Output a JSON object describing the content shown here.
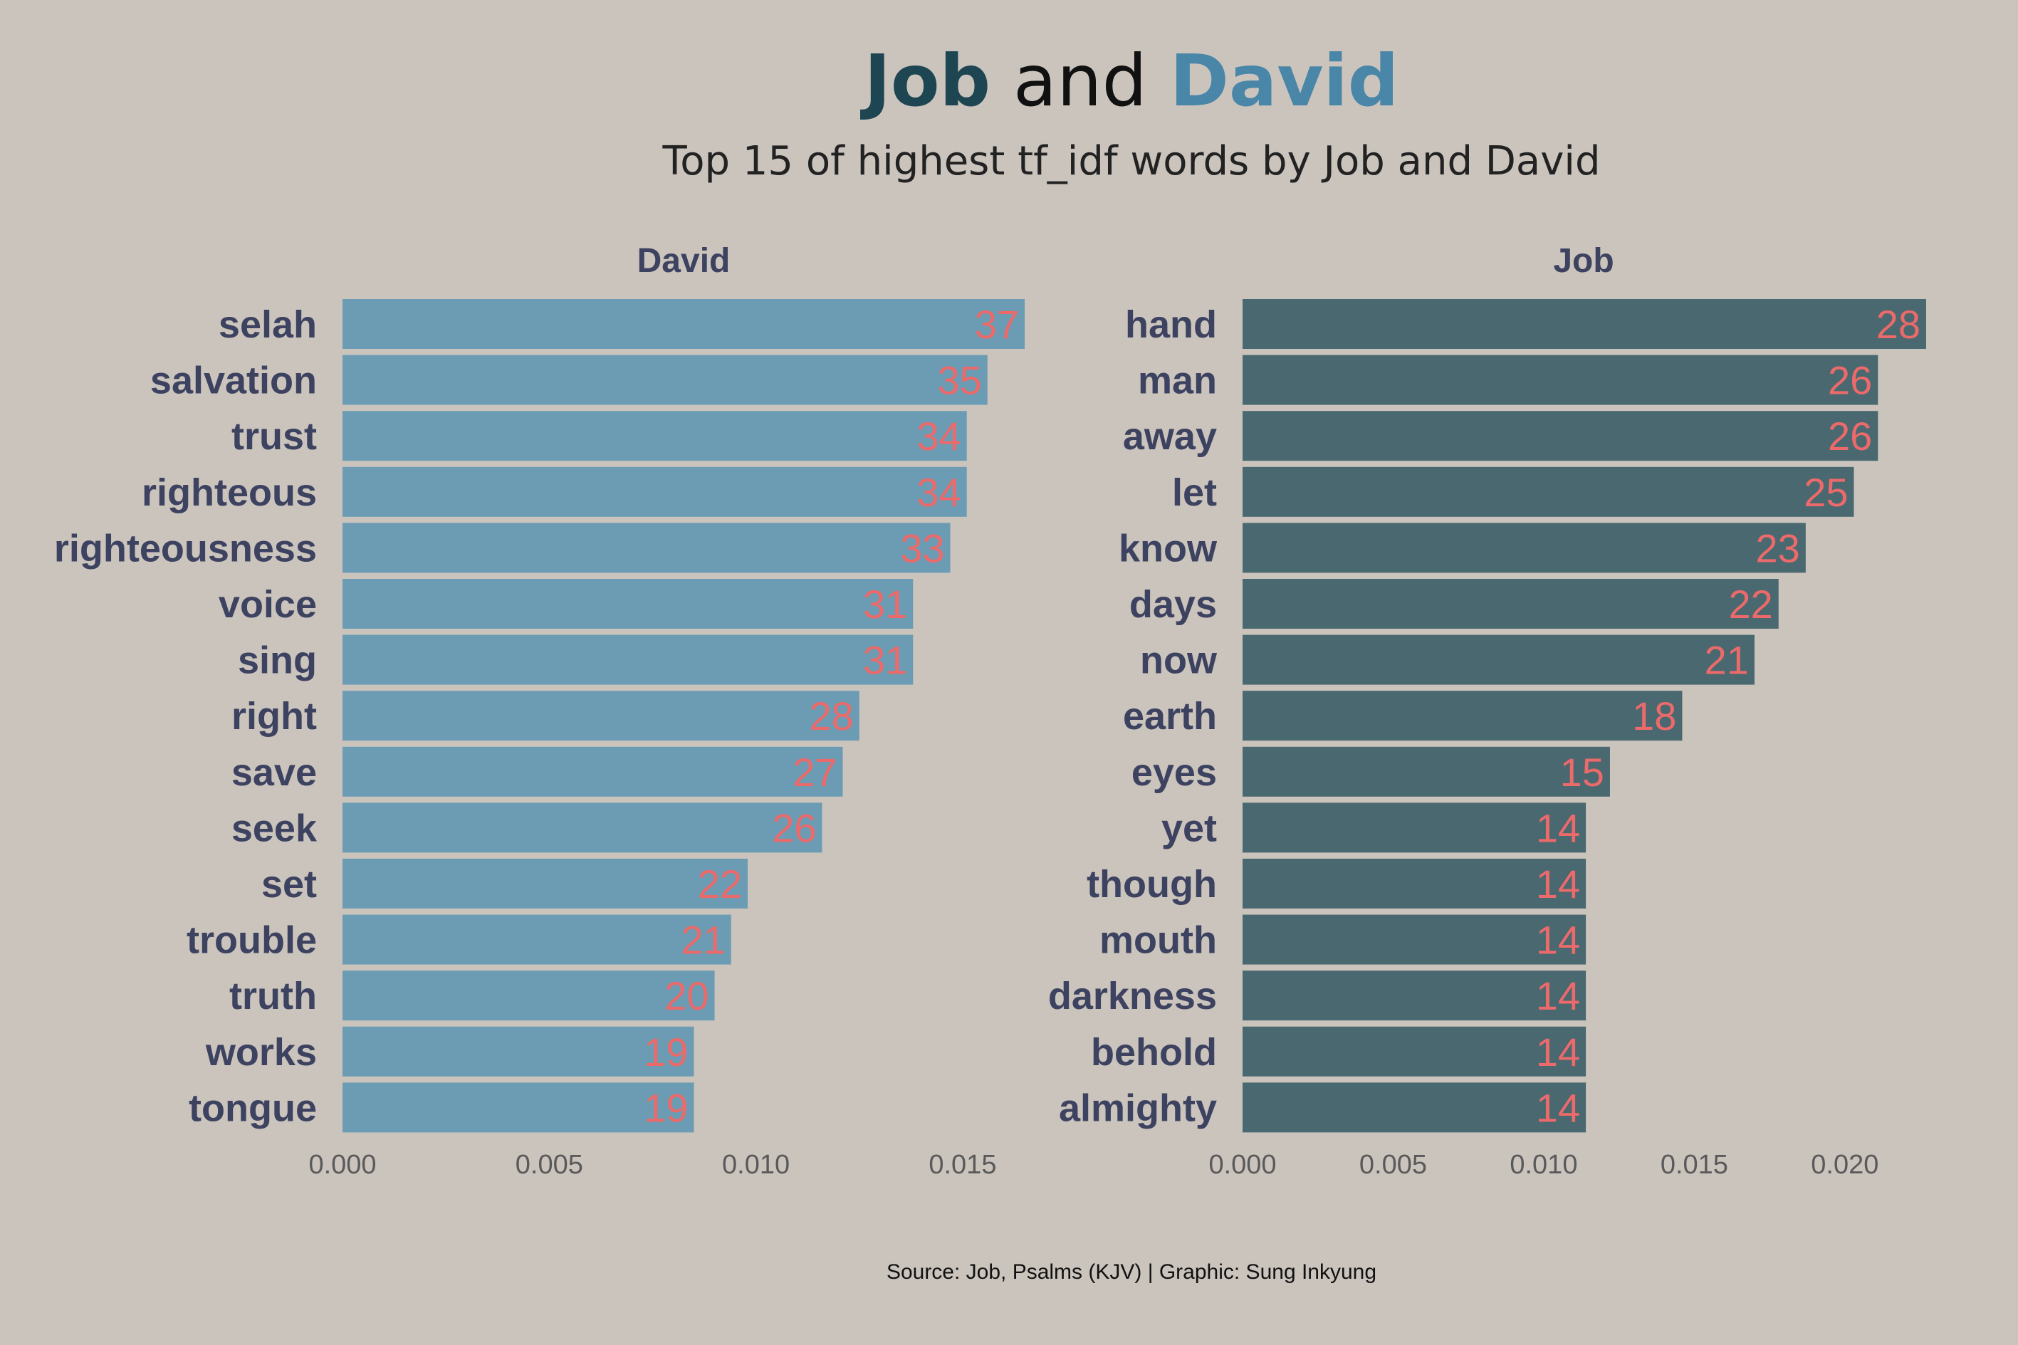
{
  "title": {
    "part1": "Job",
    "part2": " and ",
    "part3": "David"
  },
  "subtitle": "Top 15 of highest tf_idf words by Job and David",
  "caption": "Source: Job, Psalms (KJV) | Graphic: Sung Inkyung",
  "colors": {
    "background": "#cbc4bd",
    "job_title": "#1e4552",
    "david_title": "#4a86a8",
    "david_bar": "#6c9cb4",
    "job_bar": "#4a6870",
    "value_text": "#ec6a6a",
    "label_text": "#3c4260",
    "tick_text": "#5a5a5a"
  },
  "chart_data": [
    {
      "type": "bar",
      "orientation": "horizontal",
      "panel": "David",
      "categories": [
        "selah",
        "salvation",
        "trust",
        "righteous",
        "righteousness",
        "voice",
        "sing",
        "right",
        "save",
        "seek",
        "set",
        "trouble",
        "truth",
        "works",
        "tongue"
      ],
      "values": [
        0.0165,
        0.0156,
        0.0151,
        0.0151,
        0.0147,
        0.0138,
        0.0138,
        0.0125,
        0.0121,
        0.0116,
        0.0098,
        0.0094,
        0.009,
        0.0085,
        0.0085
      ],
      "counts": [
        "37",
        "35",
        "34",
        "34",
        "33",
        "31",
        "31",
        "28",
        "27",
        "26",
        "22",
        "21",
        "20",
        "19",
        "19"
      ],
      "xlim": [
        0,
        0.0165
      ],
      "xticks": [
        "0.000",
        "0.005",
        "0.010",
        "0.015"
      ],
      "xtick_values": [
        0,
        0.005,
        0.01,
        0.015
      ]
    },
    {
      "type": "bar",
      "orientation": "horizontal",
      "panel": "Job",
      "categories": [
        "hand",
        "man",
        "away",
        "let",
        "know",
        "days",
        "now",
        "earth",
        "eyes",
        "yet",
        "though",
        "mouth",
        "darkness",
        "behold",
        "almighty"
      ],
      "values": [
        0.0227,
        0.0211,
        0.0211,
        0.0203,
        0.0187,
        0.0178,
        0.017,
        0.0146,
        0.0122,
        0.0114,
        0.0114,
        0.0114,
        0.0114,
        0.0114,
        0.0114
      ],
      "counts": [
        "28",
        "26",
        "26",
        "25",
        "23",
        "22",
        "21",
        "18",
        "15",
        "14",
        "14",
        "14",
        "14",
        "14",
        "14"
      ],
      "xlim": [
        0,
        0.0227
      ],
      "xticks": [
        "0.000",
        "0.005",
        "0.010",
        "0.015",
        "0.020"
      ],
      "xtick_values": [
        0,
        0.005,
        0.01,
        0.015,
        0.02
      ]
    }
  ]
}
